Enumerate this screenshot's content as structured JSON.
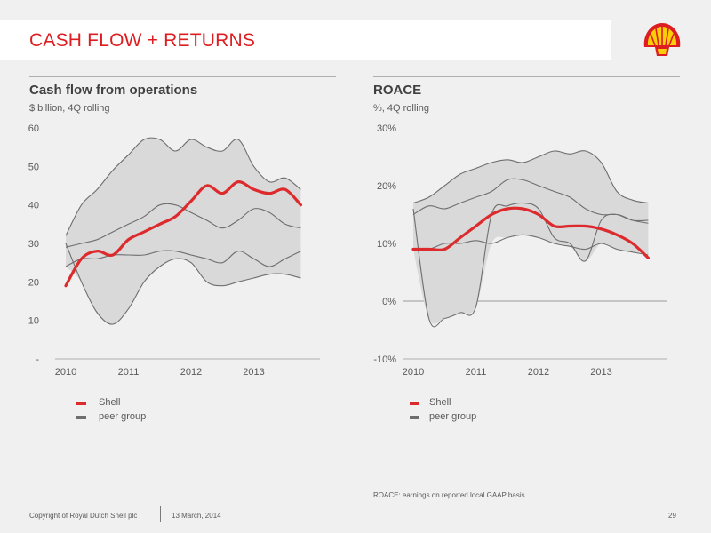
{
  "header": {
    "title": "CASH FLOW + RETURNS"
  },
  "colors": {
    "accent": "#dd1d21",
    "shell_line": "#dd2a2d",
    "peer_line": "#6e6e6e",
    "band": "#d9d9d9",
    "logo_yellow": "#fbce07"
  },
  "icons": {
    "logo": "shell-pecten-logo"
  },
  "chart_data": [
    {
      "type": "line",
      "title": "Cash flow from operations",
      "subtitle": "$ billion, 4Q rolling",
      "ylim": [
        0,
        60
      ],
      "y_ticks": [
        0,
        10,
        20,
        30,
        40,
        50,
        60
      ],
      "y_tick_labels": [
        "-",
        "10",
        "20",
        "30",
        "40",
        "50",
        "60"
      ],
      "xlim": [
        2010,
        2014
      ],
      "x_ticks": [
        2010,
        2011,
        2012,
        2013
      ],
      "x_tick_labels": [
        "2010",
        "2011",
        "2012",
        "2013"
      ],
      "legend": [
        "Shell",
        "peer group"
      ],
      "legend_position": "bottom-left",
      "x": [
        2010,
        2010.25,
        2010.5,
        2010.75,
        2011,
        2011.25,
        2011.5,
        2011.75,
        2012,
        2012.25,
        2012.5,
        2012.75,
        2013,
        2013.25,
        2013.5,
        2013.75
      ],
      "series": [
        {
          "name": "Shell",
          "values": [
            19,
            26,
            28,
            27,
            31,
            33,
            35,
            37,
            41,
            45,
            43,
            46,
            44,
            43,
            44,
            40
          ]
        },
        {
          "values": [
            32,
            40,
            44,
            49,
            53,
            57,
            57,
            54,
            57,
            55,
            54,
            57,
            50,
            46,
            47,
            44
          ]
        },
        {
          "values": [
            29,
            30,
            31,
            33,
            35,
            37,
            40,
            40,
            38,
            36,
            34,
            36,
            39,
            38,
            35,
            34
          ]
        },
        {
          "values": [
            24,
            26,
            26,
            27,
            27,
            27,
            28,
            28,
            27,
            26,
            25,
            28,
            26,
            24,
            26,
            28
          ]
        },
        {
          "values": [
            30,
            20,
            12,
            9,
            13,
            20,
            24,
            26,
            25,
            20,
            19,
            20,
            21,
            22,
            22,
            21
          ]
        }
      ]
    },
    {
      "type": "line",
      "title": "ROACE",
      "subtitle": "%, 4Q rolling",
      "ylim": [
        -10,
        30
      ],
      "y_ticks": [
        -10,
        0,
        10,
        20,
        30
      ],
      "y_tick_labels": [
        "-10%",
        "0%",
        "10%",
        "20%",
        "30%"
      ],
      "xlim": [
        2010,
        2014
      ],
      "x_ticks": [
        2010,
        2011,
        2012,
        2013
      ],
      "x_tick_labels": [
        "2010",
        "2011",
        "2012",
        "2013"
      ],
      "legend": [
        "Shell",
        "peer group"
      ],
      "legend_position": "bottom-left",
      "x": [
        2010,
        2010.25,
        2010.5,
        2010.75,
        2011,
        2011.25,
        2011.5,
        2011.75,
        2012,
        2012.25,
        2012.5,
        2012.75,
        2013,
        2013.25,
        2013.5,
        2013.75
      ],
      "series": [
        {
          "name": "Shell",
          "values": [
            9,
            9,
            9,
            11,
            13,
            15,
            16,
            16,
            15,
            13,
            13,
            13,
            12.5,
            11.5,
            10,
            7.5
          ]
        },
        {
          "values": [
            17,
            18,
            20,
            22,
            23,
            24,
            24.5,
            24,
            25,
            26,
            25.5,
            26,
            24,
            19,
            17.5,
            17
          ]
        },
        {
          "values": [
            15,
            16.5,
            16,
            17,
            18,
            19,
            21,
            21,
            20,
            19,
            18,
            16,
            15,
            15,
            14,
            14
          ]
        },
        {
          "values": [
            9,
            9,
            10,
            10,
            10.5,
            10,
            11,
            11.5,
            11,
            10,
            9.5,
            9,
            10,
            9,
            8.5,
            8
          ]
        },
        {
          "values": [
            16,
            -3,
            -3,
            -2,
            -1,
            15,
            16.5,
            17,
            16,
            11,
            10,
            7,
            14,
            15,
            14,
            13.5
          ]
        }
      ]
    }
  ],
  "footnote": "ROACE: earnings on reported local GAAP basis",
  "footer": {
    "copyright": "Copyright of Royal Dutch Shell plc",
    "date": "13 March, 2014",
    "page": "29"
  }
}
